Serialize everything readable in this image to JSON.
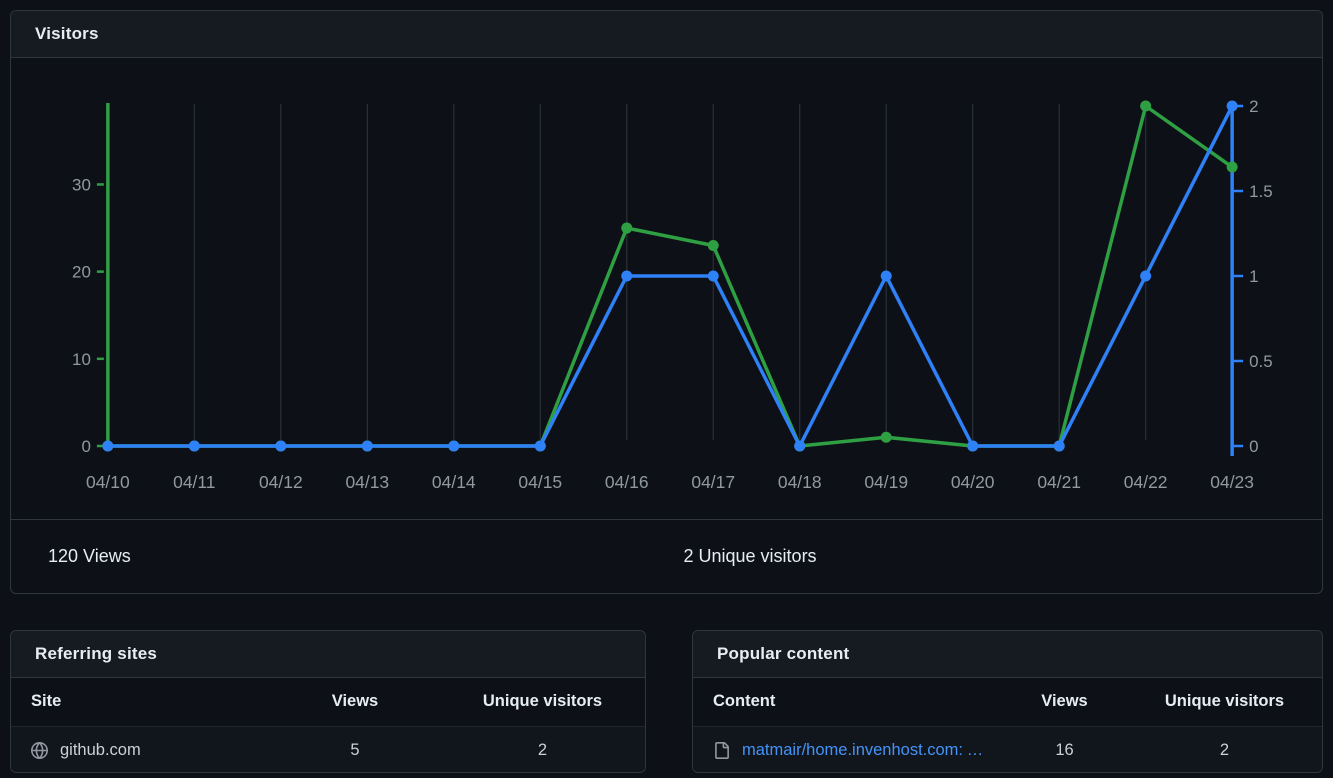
{
  "visitors_panel": {
    "title": "Visitors",
    "stats": {
      "views": "120 Views",
      "unique": "2 Unique visitors"
    }
  },
  "chart_data": {
    "type": "line",
    "title": "Visitors",
    "x": [
      "04/10",
      "04/11",
      "04/12",
      "04/13",
      "04/14",
      "04/15",
      "04/16",
      "04/17",
      "04/18",
      "04/19",
      "04/20",
      "04/21",
      "04/22",
      "04/23"
    ],
    "series": [
      {
        "name": "Views",
        "axis": "left",
        "color": "#2ea043",
        "values": [
          0,
          0,
          0,
          0,
          0,
          0,
          25,
          23,
          0,
          1,
          0,
          0,
          39,
          32
        ]
      },
      {
        "name": "Unique visitors",
        "axis": "right",
        "color": "#2f81f7",
        "values": [
          0,
          0,
          0,
          0,
          0,
          0,
          1,
          1,
          0,
          1,
          0,
          0,
          1,
          2
        ]
      }
    ],
    "left_axis": {
      "color": "#2ea043",
      "max": 39,
      "ticks": [
        {
          "v": 0,
          "label": "0"
        },
        {
          "v": 10,
          "label": "10"
        },
        {
          "v": 20,
          "label": "20"
        },
        {
          "v": 30,
          "label": "30"
        }
      ]
    },
    "right_axis": {
      "color": "#2f81f7",
      "max": 2,
      "ticks": [
        {
          "v": 0,
          "label": "0"
        },
        {
          "v": 0.5,
          "label": "0.5"
        },
        {
          "v": 1,
          "label": "1"
        },
        {
          "v": 1.5,
          "label": "1.5"
        },
        {
          "v": 2,
          "label": "2"
        }
      ]
    },
    "grid": "vertical",
    "grid_color": "#2b3138",
    "label_color": "#9198a1"
  },
  "referring_sites": {
    "title": "Referring sites",
    "columns": [
      "Site",
      "Views",
      "Unique visitors"
    ],
    "rows": [
      {
        "icon": "globe-icon",
        "site": "github.com",
        "views": "5",
        "unique": "2"
      }
    ]
  },
  "popular_content": {
    "title": "Popular content",
    "columns": [
      "Content",
      "Views",
      "Unique visitors"
    ],
    "rows": [
      {
        "icon": "file-icon",
        "content": "matmair/home.invenhost.com: A ...",
        "views": "16",
        "unique": "2"
      }
    ]
  }
}
